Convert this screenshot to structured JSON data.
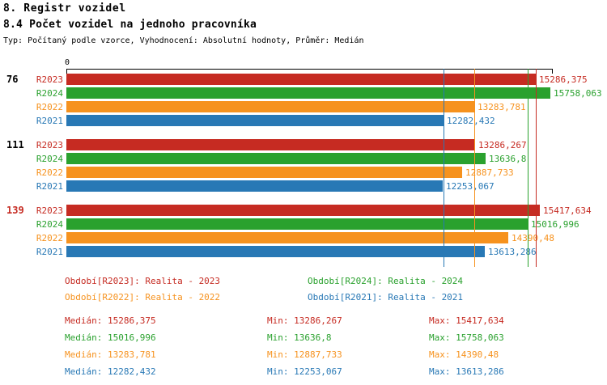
{
  "title": "8. Registr vozidel",
  "subtitle": "8.4 Počet vozidel na jednoho pracovníka",
  "meta": "Typ: Počítaný podle vzorce, Vyhodnocení: Absolutní hodnoty, Průměr: Medián",
  "colors": {
    "R2023": "#c62b22",
    "R2024": "#2aa12e",
    "R2022": "#f6921e",
    "R2021": "#2878b5",
    "axis": "#000000"
  },
  "chart_data": {
    "type": "bar",
    "orientation": "horizontal",
    "title": "8.4 Počet vozidel na jednoho pracovníka",
    "xlabel": "",
    "ylabel": "",
    "xlim": [
      0,
      15800
    ],
    "axis_origin_label": "0",
    "grid": "median-lines-per-series",
    "legend_position": "bottom",
    "series_order": [
      "R2023",
      "R2024",
      "R2022",
      "R2021"
    ],
    "groups": [
      {
        "label": "76",
        "label_color": "#000000",
        "bars": [
          {
            "series": "R2023",
            "value": 15286.375,
            "value_label": "15286,375"
          },
          {
            "series": "R2024",
            "value": 15758.063,
            "value_label": "15758,063"
          },
          {
            "series": "R2022",
            "value": 13283.781,
            "value_label": "13283,781"
          },
          {
            "series": "R2021",
            "value": 12282.432,
            "value_label": "12282,432"
          }
        ]
      },
      {
        "label": "111",
        "label_color": "#000000",
        "bars": [
          {
            "series": "R2023",
            "value": 13286.267,
            "value_label": "13286,267"
          },
          {
            "series": "R2024",
            "value": 13636.8,
            "value_label": "13636,8"
          },
          {
            "series": "R2022",
            "value": 12887.733,
            "value_label": "12887,733"
          },
          {
            "series": "R2021",
            "value": 12253.067,
            "value_label": "12253,067"
          }
        ]
      },
      {
        "label": "139",
        "label_color": "#c62b22",
        "bars": [
          {
            "series": "R2023",
            "value": 15417.634,
            "value_label": "15417,634"
          },
          {
            "series": "R2024",
            "value": 15016.996,
            "value_label": "15016,996"
          },
          {
            "series": "R2022",
            "value": 14390.48,
            "value_label": "14390,48"
          },
          {
            "series": "R2021",
            "value": 13613.286,
            "value_label": "13613,286"
          }
        ]
      }
    ],
    "median_lines": [
      {
        "series": "R2023",
        "value": 15286.375
      },
      {
        "series": "R2024",
        "value": 15016.996
      },
      {
        "series": "R2022",
        "value": 13283.781
      },
      {
        "series": "R2021",
        "value": 12282.432
      }
    ]
  },
  "legend": [
    {
      "series": "R2023",
      "text": "Období[R2023]: Realita - 2023"
    },
    {
      "series": "R2024",
      "text": "Období[R2024]: Realita - 2024"
    },
    {
      "series": "R2022",
      "text": "Období[R2022]: Realita - 2022"
    },
    {
      "series": "R2021",
      "text": "Období[R2021]: Realita - 2021"
    }
  ],
  "stats": [
    {
      "series": "R2023",
      "median": "Medián: 15286,375",
      "min": "Min: 13286,267",
      "max": "Max: 15417,634"
    },
    {
      "series": "R2024",
      "median": "Medián: 15016,996",
      "min": "Min: 13636,8",
      "max": "Max: 15758,063"
    },
    {
      "series": "R2022",
      "median": "Medián: 13283,781",
      "min": "Min: 12887,733",
      "max": "Max: 14390,48"
    },
    {
      "series": "R2021",
      "median": "Medián: 12282,432",
      "min": "Min: 12253,067",
      "max": "Max: 13613,286"
    }
  ]
}
